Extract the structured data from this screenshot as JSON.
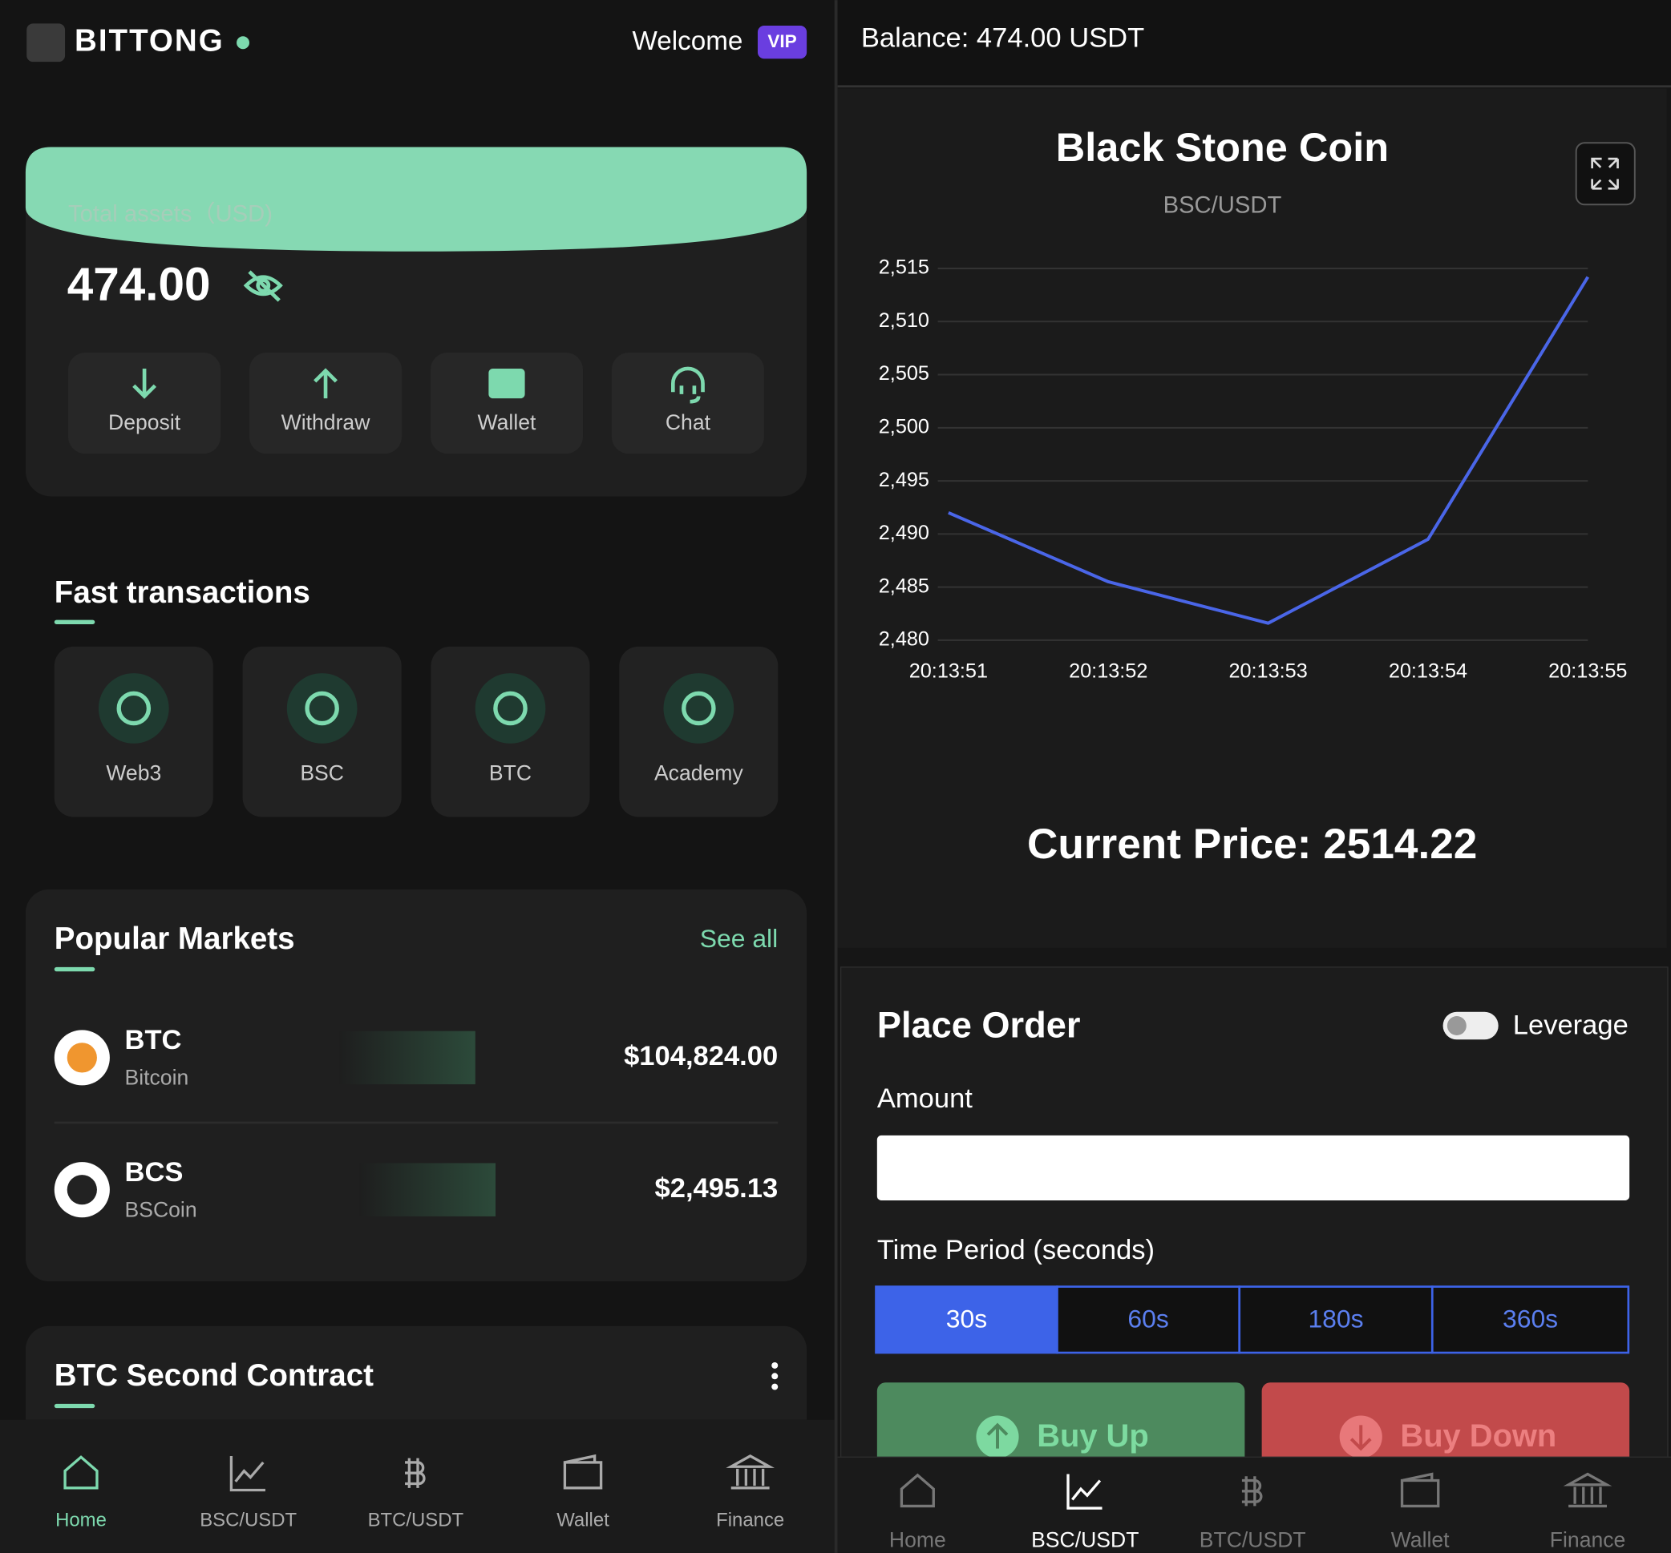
{
  "header": {
    "brand": "BITTONG",
    "welcome": "Welcome",
    "badge": "VIP"
  },
  "assets": {
    "label": "Total assets（USD)",
    "amount": "474.00",
    "actions": [
      "Deposit",
      "Withdraw",
      "Wallet",
      "Chat"
    ]
  },
  "fast": {
    "title": "Fast transactions",
    "items": [
      "Web3",
      "BSC",
      "BTC",
      "Academy"
    ]
  },
  "markets": {
    "title": "Popular Markets",
    "see_all": "See all",
    "rows": [
      {
        "symbol": "BTC",
        "name": "Bitcoin",
        "price": "$104,824.00"
      },
      {
        "symbol": "BCS",
        "name": "BSCoin",
        "price": "$2,495.13"
      }
    ]
  },
  "contract": {
    "title": "BTC Second Contract"
  },
  "nav_left": {
    "items": [
      "Home",
      "BSC/USDT",
      "BTC/USDT",
      "Wallet",
      "Finance"
    ]
  },
  "balance": "Balance: 474.00 USDT",
  "chart_data": {
    "type": "line",
    "title": "Black Stone Coin",
    "subtitle": "BSC/USDT",
    "categories": [
      "20:13:51",
      "20:13:52",
      "20:13:53",
      "20:13:54",
      "20:13:55"
    ],
    "values": [
      2492,
      2485.5,
      2481.6,
      2489.5,
      2514.2
    ],
    "color": "#4a66e8",
    "ylim": [
      2480,
      2515
    ],
    "yticks": [
      {
        "value": 2480,
        "label": "2,480"
      },
      {
        "value": 2485,
        "label": "2,485"
      },
      {
        "value": 2490,
        "label": "2,490"
      },
      {
        "value": 2495,
        "label": "2,495"
      },
      {
        "value": 2500,
        "label": "2,500"
      },
      {
        "value": 2505,
        "label": "2,505"
      },
      {
        "value": 2510,
        "label": "2,510"
      },
      {
        "value": 2515,
        "label": "2,515"
      }
    ],
    "grid": true
  },
  "current_price": "Current Price: 2514.22",
  "order": {
    "title": "Place Order",
    "leverage": "Leverage",
    "amount": "Amount",
    "period": "Time Period (seconds)",
    "periods": [
      "30s",
      "60s",
      "180s",
      "360s"
    ],
    "buy_up": "Buy Up",
    "buy_down": "Buy Down"
  },
  "nav_right": {
    "items": [
      "Home",
      "BSC/USDT",
      "BTC/USDT",
      "Wallet",
      "Finance"
    ]
  }
}
